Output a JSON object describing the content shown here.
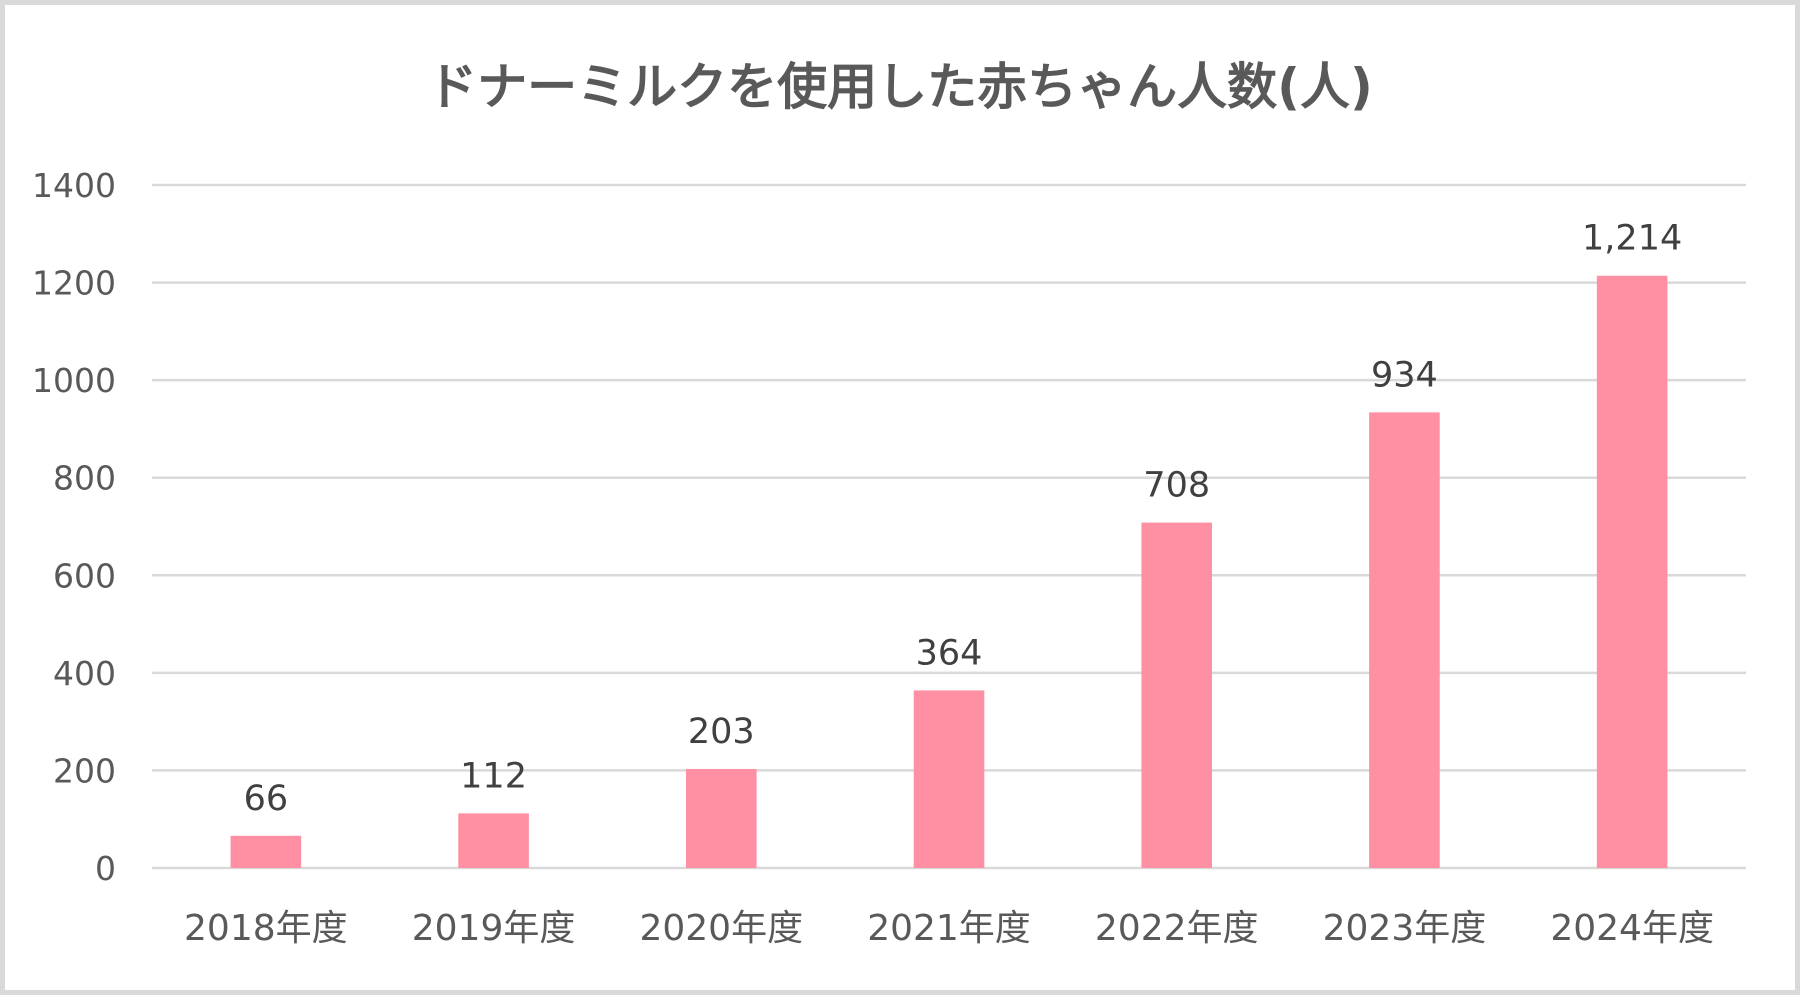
{
  "chart_data": {
    "type": "bar",
    "title": "ドナーミルクを使用した赤ちゃん人数(人)",
    "xlabel": "",
    "ylabel": "",
    "categories": [
      "2018年度",
      "2019年度",
      "2020年度",
      "2021年度",
      "2022年度",
      "2023年度",
      "2024年度"
    ],
    "values": [
      66,
      112,
      203,
      364,
      708,
      934,
      1214
    ],
    "data_labels": [
      "66",
      "112",
      "203",
      "364",
      "708",
      "934",
      "1,214"
    ],
    "y_ticks": [
      "0",
      "200",
      "400",
      "600",
      "800",
      "1000",
      "1200",
      "1400"
    ],
    "ylim": [
      0,
      1400
    ],
    "grid": true,
    "legend": "none",
    "bar_color": "#ff8fa3",
    "grid_color": "#d9d9d9",
    "text_color": "#595959"
  }
}
